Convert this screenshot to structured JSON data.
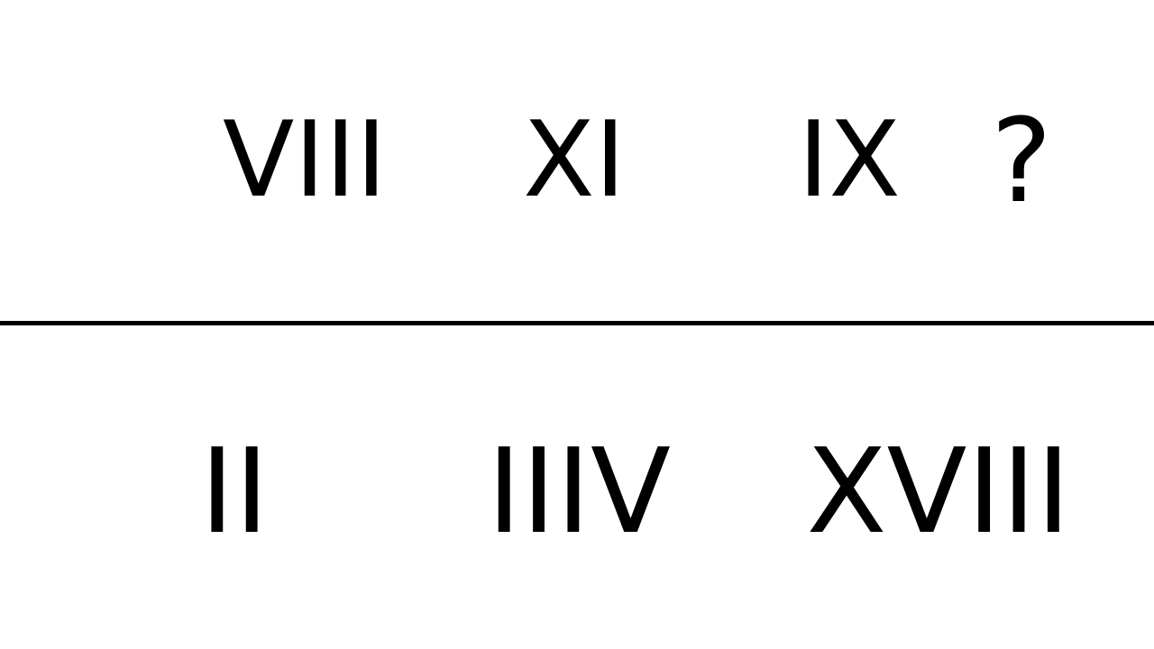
{
  "puzzle": {
    "question_row": [
      "VIII",
      "XI",
      "IX",
      "?"
    ],
    "answer_options": [
      "II",
      "IIIV",
      "XVIII"
    ]
  }
}
